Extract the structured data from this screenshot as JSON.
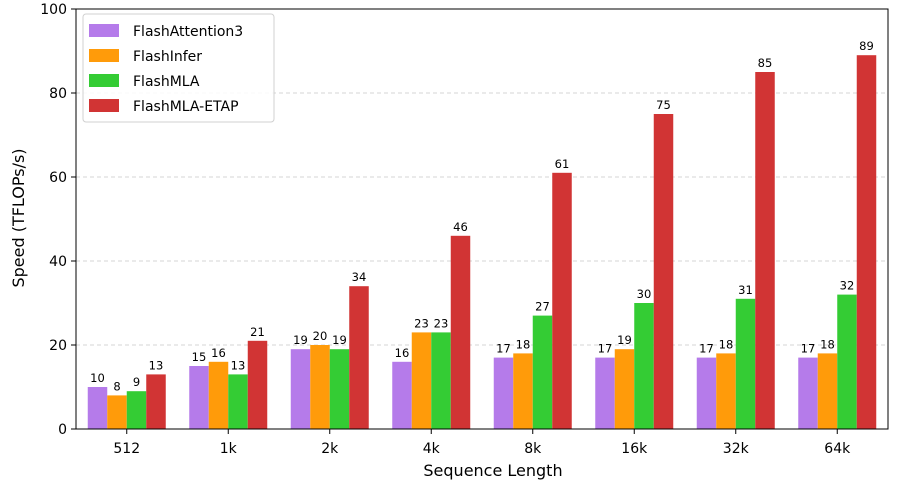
{
  "chart_data": {
    "type": "bar",
    "xlabel": "Sequence Length",
    "ylabel": "Speed (TFLOPs/s)",
    "ylim": [
      0,
      100
    ],
    "yticks": [
      0,
      20,
      40,
      60,
      80,
      100
    ],
    "grid": "y-dashed",
    "legend_position": "top-left",
    "categories": [
      "512",
      "1k",
      "2k",
      "4k",
      "8k",
      "16k",
      "32k",
      "64k"
    ],
    "series": [
      {
        "name": "FlashAttention3",
        "color": "#b57bea",
        "values": [
          10,
          15,
          19,
          16,
          17,
          17,
          17,
          17
        ]
      },
      {
        "name": "FlashInfer",
        "color": "#ff9b0a",
        "values": [
          8,
          16,
          20,
          23,
          18,
          19,
          18,
          18
        ]
      },
      {
        "name": "FlashMLA",
        "color": "#34cc34",
        "values": [
          9,
          13,
          19,
          23,
          27,
          30,
          31,
          32
        ]
      },
      {
        "name": "FlashMLA-ETAP",
        "color": "#d13434",
        "values": [
          13,
          21,
          34,
          46,
          61,
          75,
          85,
          89
        ]
      }
    ]
  }
}
